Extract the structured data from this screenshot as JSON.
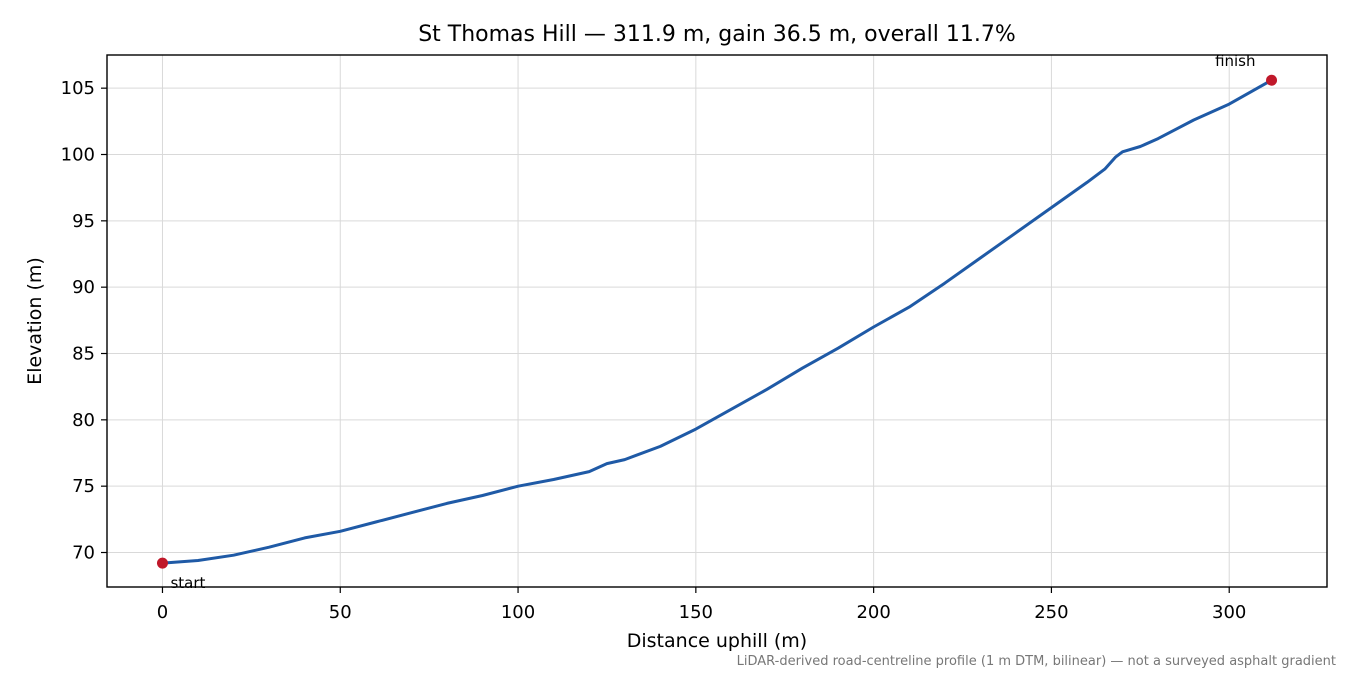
{
  "chart_data": {
    "type": "line",
    "title": "St Thomas Hill — 311.9 m, gain 36.5 m, overall 11.7%",
    "xlabel": "Distance uphill (m)",
    "ylabel": "Elevation (m)",
    "xlim": [
      -15.6,
      327.5
    ],
    "ylim": [
      67.4,
      107.5
    ],
    "xticks": [
      0,
      50,
      100,
      150,
      200,
      250,
      300
    ],
    "yticks": [
      70,
      75,
      80,
      85,
      90,
      95,
      100,
      105
    ],
    "grid": true,
    "footnote": "LiDAR-derived road-centreline profile (1 m DTM, bilinear) — not a surveyed asphalt gradient",
    "series": [
      {
        "color": "#1f5aa6",
        "x": [
          0,
          10,
          20,
          30,
          40,
          50,
          60,
          70,
          80,
          90,
          100,
          110,
          120,
          125,
          130,
          140,
          150,
          160,
          170,
          180,
          190,
          200,
          210,
          220,
          230,
          240,
          250,
          260,
          265,
          268,
          270,
          275,
          280,
          290,
          300,
          311.9
        ],
        "y": [
          69.2,
          69.4,
          69.8,
          70.4,
          71.1,
          71.6,
          72.3,
          73.0,
          73.7,
          74.3,
          75.0,
          75.5,
          76.1,
          76.7,
          77.0,
          78.0,
          79.3,
          80.8,
          82.3,
          83.9,
          85.4,
          87.0,
          88.5,
          90.3,
          92.2,
          94.1,
          96.0,
          97.9,
          98.9,
          99.8,
          100.2,
          100.6,
          101.2,
          102.6,
          103.8,
          105.6
        ]
      }
    ],
    "markers": [
      {
        "label": "start",
        "x": 0,
        "y": 69.2,
        "color": "#c0182a"
      },
      {
        "label": "finish",
        "x": 311.9,
        "y": 105.6,
        "color": "#c0182a"
      }
    ]
  }
}
